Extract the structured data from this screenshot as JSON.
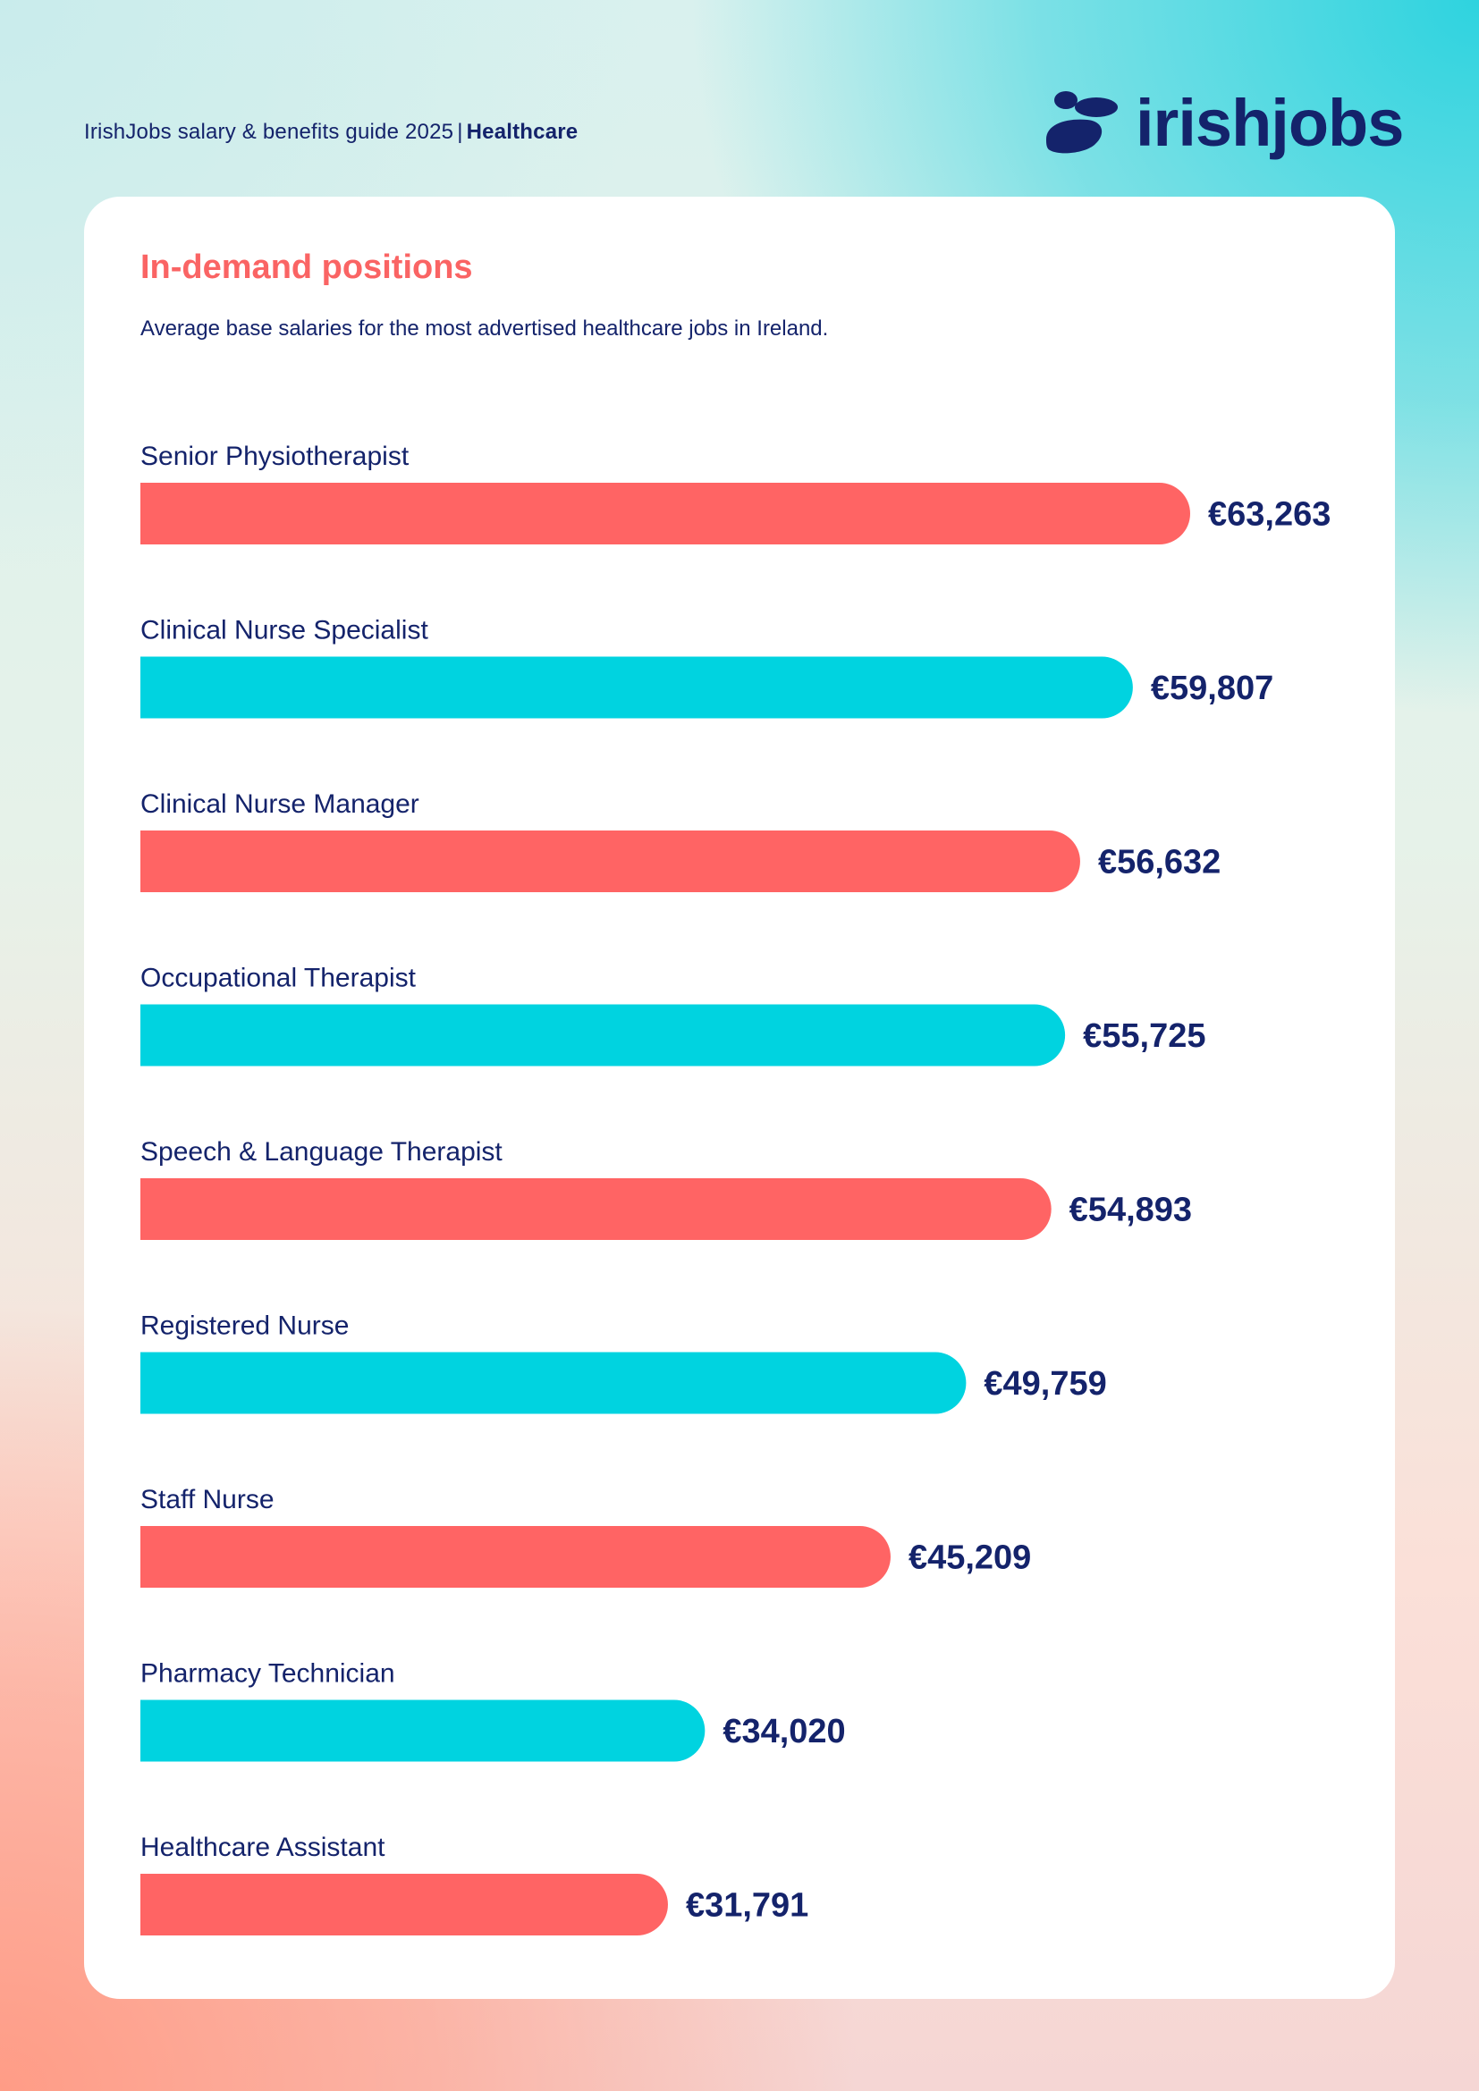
{
  "header": {
    "guide_title": "IrishJobs salary & benefits guide 2025",
    "separator": "|",
    "section": "Healthcare"
  },
  "logo": {
    "wordmark": "irishjobs",
    "icon": "irishjobs-logo-icon"
  },
  "colors": {
    "coral": "#ff6464",
    "cyan": "#00d3e0",
    "navy": "#14236b",
    "title_coral": "#fa6464"
  },
  "chart_data": {
    "type": "bar",
    "orientation": "horizontal",
    "title": "In-demand positions",
    "subtitle": "Average base salaries for the most advertised healthcare jobs in Ireland.",
    "categories": [
      "Senior Physiotherapist",
      "Clinical Nurse Specialist",
      "Clinical Nurse Manager",
      "Occupational Therapist",
      "Speech & Language Therapist",
      "Registered Nurse",
      "Staff Nurse",
      "Pharmacy Technician",
      "Healthcare Assistant"
    ],
    "values": [
      63263,
      59807,
      56632,
      55725,
      54893,
      49759,
      45209,
      34020,
      31791
    ],
    "value_labels": [
      "€63,263",
      "€59,807",
      "€56,632",
      "€55,725",
      "€54,893",
      "€49,759",
      "€45,209",
      "€34,020",
      "€31,791"
    ],
    "bar_colors": [
      "#ff6464",
      "#00d3e0",
      "#ff6464",
      "#00d3e0",
      "#ff6464",
      "#00d3e0",
      "#ff6464",
      "#00d3e0",
      "#ff6464"
    ],
    "xlabel": "",
    "ylabel": "",
    "legend": false,
    "grid": false
  }
}
